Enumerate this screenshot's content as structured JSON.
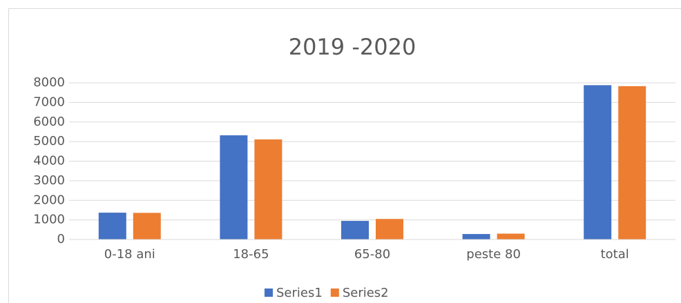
{
  "chart_data": {
    "type": "bar",
    "title": "2019 -2020",
    "categories": [
      "0-18 ani",
      "18-65",
      "65-80",
      "peste 80",
      "total"
    ],
    "series": [
      {
        "name": "Series1",
        "color": "#4472c4",
        "values": [
          1370,
          5320,
          950,
          280,
          7880
        ]
      },
      {
        "name": "Series2",
        "color": "#ed7d31",
        "values": [
          1360,
          5110,
          1050,
          300,
          7830
        ]
      }
    ],
    "ylim": [
      0,
      8000
    ],
    "yticks": [
      0,
      1000,
      2000,
      3000,
      4000,
      5000,
      6000,
      7000,
      8000
    ],
    "grid": true
  }
}
